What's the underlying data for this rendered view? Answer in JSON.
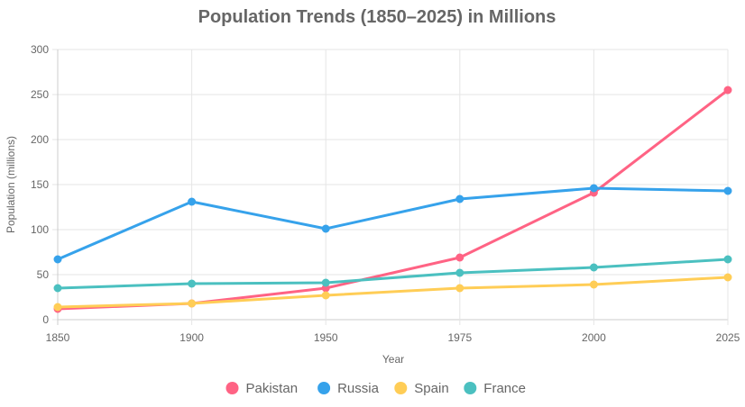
{
  "chart_data": {
    "type": "line",
    "title": "Population Trends (1850–2025) in Millions",
    "xlabel": "Year",
    "ylabel": "Population (millions)",
    "categories": [
      "1850",
      "1900",
      "1950",
      "1975",
      "2000",
      "2025"
    ],
    "ylim": [
      0,
      300
    ],
    "yticks": [
      "0",
      "50",
      "100",
      "150",
      "200",
      "250",
      "300"
    ],
    "grid": true,
    "legend_position": "bottom",
    "series": [
      {
        "name": "Pakistan",
        "color": "#ff6384",
        "values": [
          12,
          18,
          35,
          69,
          141,
          255
        ]
      },
      {
        "name": "Russia",
        "color": "#36a2eb",
        "values": [
          67,
          131,
          101,
          134,
          146,
          143
        ]
      },
      {
        "name": "Spain",
        "color": "#ffcd56",
        "values": [
          14,
          18,
          27,
          35,
          39,
          47
        ]
      },
      {
        "name": "France",
        "color": "#4bc0c0",
        "values": [
          35,
          40,
          41,
          52,
          58,
          67
        ]
      }
    ]
  }
}
